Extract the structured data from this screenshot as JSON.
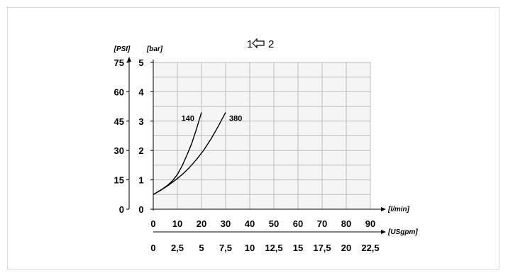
{
  "chart_data": {
    "type": "line",
    "title_left": "1",
    "title_right": "2",
    "title_icon": "left-arrow-icon",
    "y_axes": [
      {
        "unit_label": "[PSI]",
        "ticks": [
          "0",
          "15",
          "30",
          "45",
          "60",
          "75"
        ]
      },
      {
        "unit_label": "[bar]",
        "ticks": [
          "0",
          "1",
          "2",
          "3",
          "4",
          "5"
        ],
        "ylim": [
          0,
          5
        ]
      }
    ],
    "x_axes": [
      {
        "unit_label": "[l/min]",
        "ticks": [
          "0",
          "10",
          "20",
          "30",
          "40",
          "50",
          "60",
          "70",
          "80",
          "90"
        ],
        "xlim": [
          0,
          90
        ]
      },
      {
        "unit_label": "[USgpm]",
        "ticks": [
          "0",
          "2,5",
          "5",
          "7,5",
          "10",
          "12,5",
          "15",
          "17,5",
          "20",
          "22,5"
        ]
      }
    ],
    "grid": true,
    "series": [
      {
        "name": "140",
        "x": [
          0,
          2,
          4,
          6,
          8,
          10,
          12,
          14,
          16,
          18,
          20
        ],
        "y": [
          0.5,
          0.6,
          0.7,
          0.82,
          0.97,
          1.18,
          1.48,
          1.85,
          2.25,
          2.75,
          3.3
        ]
      },
      {
        "name": "380",
        "x": [
          0,
          3,
          6,
          9,
          12,
          15,
          18,
          21,
          24,
          27,
          30
        ],
        "y": [
          0.5,
          0.64,
          0.8,
          0.98,
          1.18,
          1.42,
          1.7,
          2.02,
          2.4,
          2.83,
          3.3
        ]
      }
    ]
  }
}
